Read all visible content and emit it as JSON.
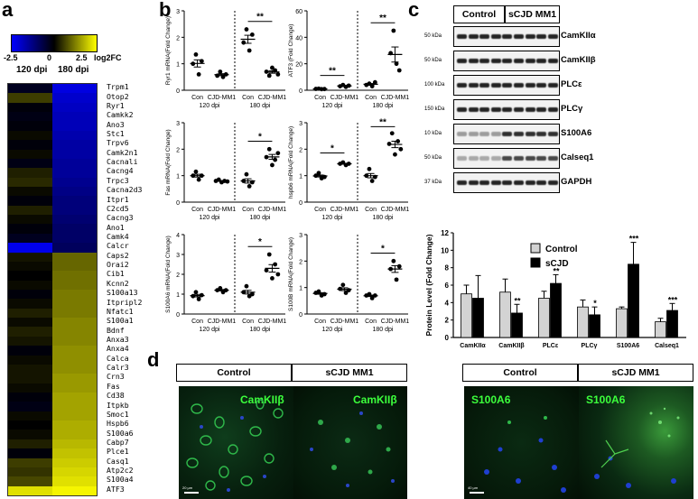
{
  "panels": {
    "a": "a",
    "b": "b",
    "c": "c",
    "d": "d"
  },
  "heatmap": {
    "scale_min": "-2.5",
    "scale_max": "2.5",
    "scale_unit": "log2FC",
    "col1": "120 dpi",
    "col2": "180 dpi",
    "genes": [
      "Trpm1",
      "Otop2",
      "Ryr1",
      "Camkk2",
      "Ano3",
      "Stc1",
      "Trpv6",
      "Camk2n1",
      "Cacnali",
      "Cacng4",
      "Trpc3",
      "Cacna2d3",
      "Itpr1",
      "C2cd5",
      "Cacng3",
      "Ano1",
      "Camk4",
      "Calcr",
      "Caps2",
      "Orai2",
      "Cib1",
      "Kcnn2",
      "S100a13",
      "Itpripl2",
      "Nfatc1",
      "S100a1",
      "Bdnf",
      "Anxa3",
      "Anxa4",
      "Calca",
      "Calr3",
      "Crn3",
      "Fas",
      "Cd38",
      "Itpkb",
      "Smoc1",
      "Hspb6",
      "S100a6",
      "Cabp7",
      "Plce1",
      "Casq1",
      "Atp2c2",
      "S100a4",
      "ATF3"
    ],
    "values_120": [
      -0.3,
      0.6,
      -0.1,
      -0.2,
      -0.1,
      0.1,
      -0.1,
      0.1,
      -0.2,
      0.3,
      0.4,
      0.1,
      -0.1,
      0.3,
      0.1,
      -0.1,
      -0.3,
      -2.3,
      0.2,
      0.1,
      0.0,
      0.1,
      -0.1,
      0.1,
      0.3,
      0.1,
      0.3,
      0.2,
      -0.1,
      0.1,
      0.2,
      0.2,
      0.1,
      -0.1,
      -0.2,
      0.1,
      0.0,
      0.1,
      0.3,
      -0.1,
      0.6,
      0.5,
      0.7,
      2.2
    ],
    "values_180": [
      -2.2,
      -2.0,
      -1.9,
      -1.8,
      -1.8,
      -1.7,
      -1.6,
      -1.6,
      -1.5,
      -1.5,
      -1.4,
      -1.3,
      -1.2,
      -1.2,
      -1.1,
      -1.0,
      -1.0,
      -0.9,
      1.0,
      1.0,
      1.1,
      1.1,
      1.2,
      1.2,
      1.2,
      1.3,
      1.3,
      1.3,
      1.4,
      1.4,
      1.4,
      1.5,
      1.5,
      1.6,
      1.6,
      1.6,
      1.7,
      1.7,
      1.8,
      1.9,
      2.0,
      2.1,
      2.2,
      2.4
    ]
  },
  "scatter": {
    "con": "Con",
    "cjd": "CJD-MM1",
    "d120": "120 dpi",
    "d180": "180 dpi",
    "plots": [
      {
        "ylabel": "Ryr1 mRNA(Fold Change)",
        "yticks": [
          "0",
          "1",
          "2",
          "3"
        ],
        "ymax": 3,
        "sig120": "",
        "sig180": "**",
        "g": [
          [
            1.0,
            1.35,
            0.6,
            1.1
          ],
          [
            0.55,
            0.7,
            0.5,
            0.6
          ],
          [
            1.8,
            2.3,
            1.5,
            2.1
          ],
          [
            0.7,
            0.55,
            0.85,
            0.75,
            0.6
          ]
        ]
      },
      {
        "ylabel": "ATF3 (Fold Change)",
        "yticks": [
          "0",
          "20",
          "40",
          "60"
        ],
        "ymax": 60,
        "sig120": "**",
        "sig180": "**",
        "g": [
          [
            1.0,
            1.2,
            0.8,
            0.9
          ],
          [
            3.0,
            4.0,
            2.5,
            3.5
          ],
          [
            4.0,
            5.0,
            3.0,
            6.0
          ],
          [
            28,
            45,
            20,
            15
          ]
        ]
      },
      {
        "ylabel": "Fas mRNA(Fold Change)",
        "yticks": [
          "0",
          "1",
          "2",
          "3"
        ],
        "ymax": 3,
        "sig120": "",
        "sig180": "*",
        "g": [
          [
            1.0,
            1.15,
            0.85,
            1.0
          ],
          [
            0.8,
            0.85,
            0.75,
            0.8,
            0.78
          ],
          [
            0.8,
            1.05,
            0.6,
            0.75
          ],
          [
            1.7,
            2.0,
            1.4,
            1.6,
            1.85
          ]
        ]
      },
      {
        "ylabel": "hspb6 mRNA(Fold Change)",
        "yticks": [
          "0",
          "1",
          "2",
          "3"
        ],
        "ymax": 3,
        "sig120": "*",
        "sig180": "**",
        "g": [
          [
            1.0,
            1.1,
            0.9,
            0.95
          ],
          [
            1.45,
            1.5,
            1.4,
            1.45
          ],
          [
            1.0,
            1.25,
            0.8,
            0.95
          ],
          [
            2.2,
            2.6,
            1.8,
            2.3,
            2.0
          ]
        ]
      },
      {
        "ylabel": "S100A6 mRNA(Fold Change)",
        "yticks": [
          "0",
          "1",
          "2",
          "3",
          "4"
        ],
        "ymax": 4,
        "sig120": "",
        "sig180": "*",
        "g": [
          [
            0.9,
            1.1,
            0.75,
            0.95
          ],
          [
            1.2,
            1.3,
            1.1,
            1.2
          ],
          [
            1.1,
            1.4,
            0.9,
            1.0
          ],
          [
            2.2,
            3.0,
            1.8,
            2.5,
            2.0
          ]
        ]
      },
      {
        "ylabel": "S100B mRNA(Fold Change)",
        "yticks": [
          "0",
          "1",
          "2",
          "3"
        ],
        "ymax": 3,
        "sig120": "",
        "sig180": "*",
        "g": [
          [
            0.8,
            0.85,
            0.7,
            0.75
          ],
          [
            0.95,
            1.1,
            0.8,
            0.9
          ],
          [
            0.7,
            0.75,
            0.6,
            0.7
          ],
          [
            1.7,
            2.0,
            1.3,
            1.8
          ]
        ]
      }
    ]
  },
  "westernblot": {
    "control": "Control",
    "scjd": "sCJD MM1",
    "rows": [
      {
        "kda": "50 kDa",
        "name": "CamKIIα"
      },
      {
        "kda": "50 kDa",
        "name": "CamKIIβ"
      },
      {
        "kda": "100 kDa",
        "name": "PLCε"
      },
      {
        "kda": "150 kDa",
        "name": "PLCγ"
      },
      {
        "kda": "10 kDa",
        "name": "S100A6"
      },
      {
        "kda": "50 kDa",
        "name": "Calseq1"
      },
      {
        "kda": "37 kDa",
        "name": "GAPDH"
      }
    ]
  },
  "chart_data": {
    "type": "bar",
    "categories": [
      "CamKIIα",
      "CamKIIβ",
      "PLCε",
      "PLCγ",
      "S100A6",
      "Calseq1"
    ],
    "series": [
      {
        "name": "Control",
        "values": [
          5.0,
          5.2,
          4.5,
          3.5,
          3.3,
          1.8
        ],
        "err": [
          1.0,
          1.5,
          0.8,
          0.8,
          0.2,
          0.4
        ]
      },
      {
        "name": "sCJD",
        "values": [
          4.5,
          2.8,
          6.2,
          2.6,
          8.4,
          3.1
        ],
        "err": [
          2.6,
          1.0,
          1.0,
          0.9,
          2.5,
          0.8
        ]
      }
    ],
    "sig": [
      "",
      "**",
      "**",
      "*",
      "***",
      "***"
    ],
    "yticks": [
      "0",
      "2",
      "4",
      "6",
      "8",
      "10",
      "12"
    ],
    "ylim": [
      0,
      12
    ],
    "ylabel": "Protein Level (Fold Change)"
  },
  "micro": {
    "control": "Control",
    "scjd": "sCJD MM1",
    "m1": "CamKIIβ",
    "m2": "CamKIIβ",
    "m3": "S100A6",
    "m4": "S100A6",
    "scale1": "20 µm",
    "scale2": "40 µm"
  }
}
